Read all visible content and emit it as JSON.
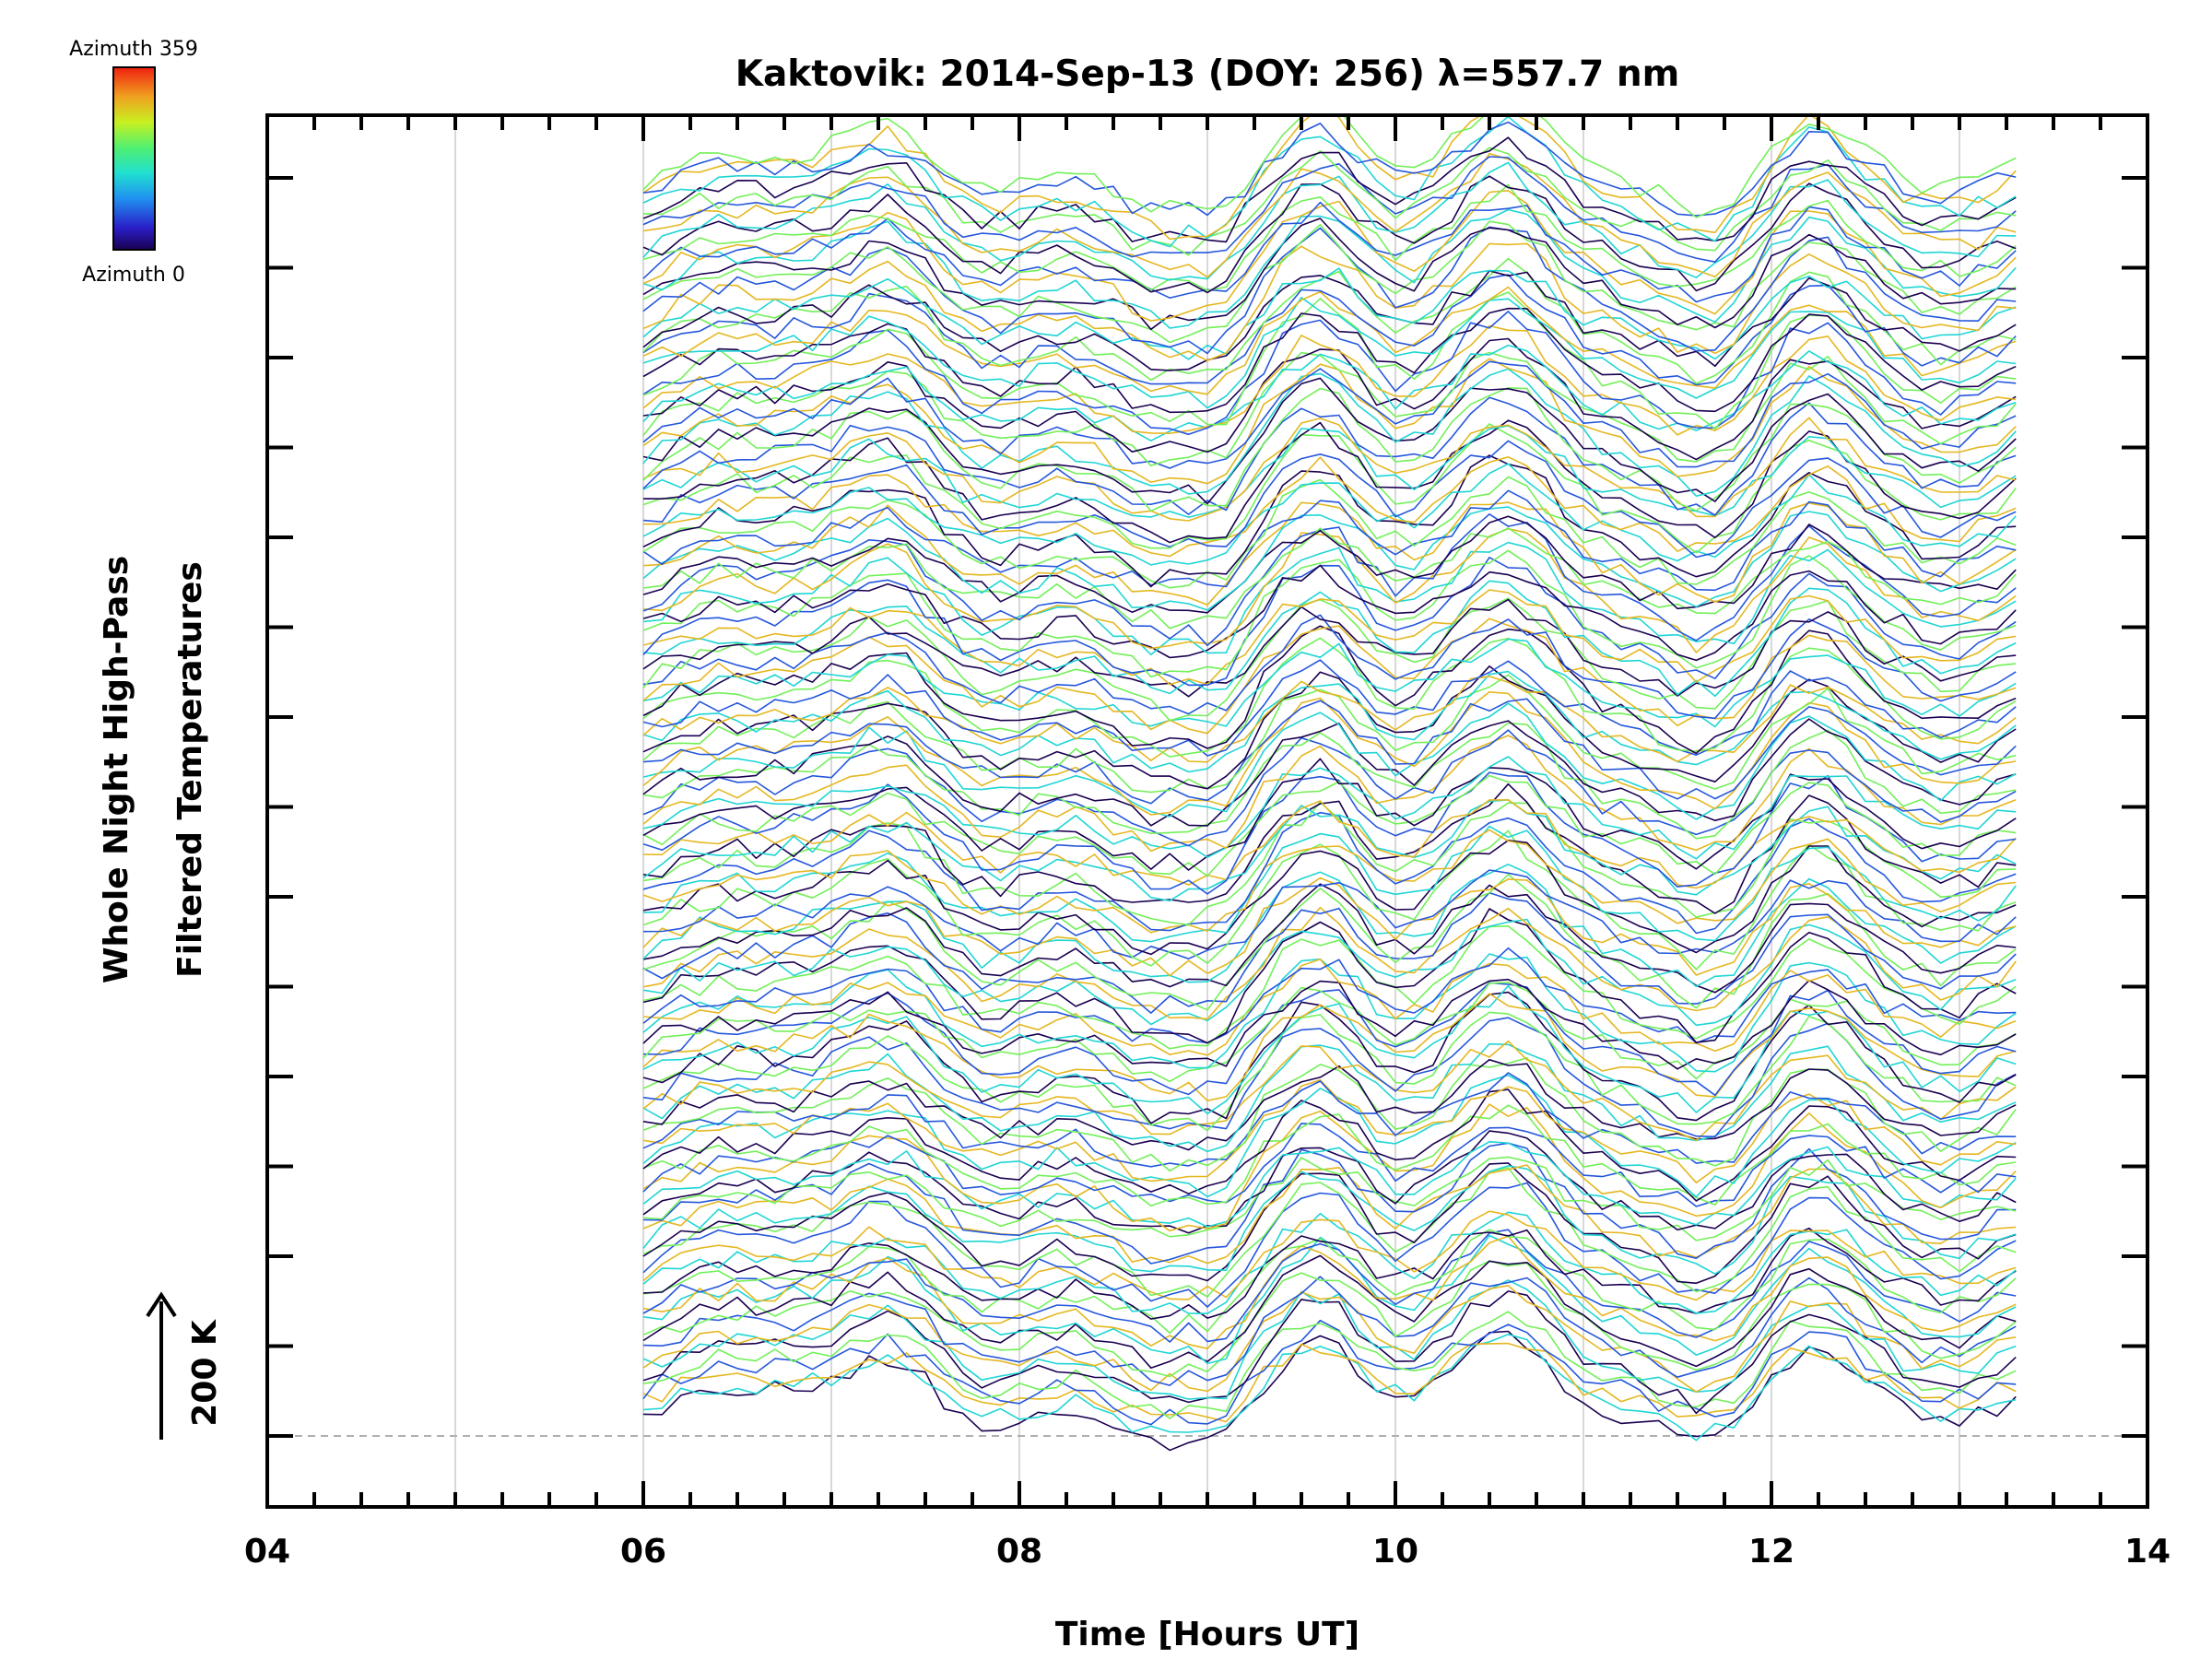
{
  "chart_data": {
    "type": "line",
    "title": "Kaktovik: 2014-Sep-13 (DOY: 256) λ=557.7 nm",
    "xlabel": "Time [Hours UT]",
    "ylabel_line1": "Whole Night High-Pass",
    "ylabel_line2": "Filtered Temperatures",
    "xlim": [
      4,
      14
    ],
    "x_ticks": [
      "04",
      "06",
      "08",
      "10",
      "12",
      "14"
    ],
    "x_tick_values": [
      4,
      6,
      8,
      10,
      12,
      14
    ],
    "time_range": [
      6.0,
      13.3
    ],
    "scale_bar_label": "200 K",
    "grid": true,
    "series_count": 150,
    "legend": {
      "type": "colorbar",
      "top_label": "Azimuth 359",
      "bottom_label": "Azimuth 0",
      "colormap": "rainbow"
    },
    "reference_line": "baseline (dashed)"
  }
}
